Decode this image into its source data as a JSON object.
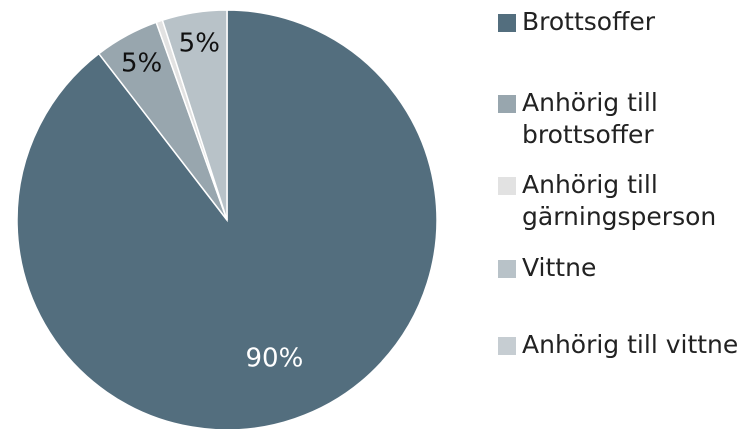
{
  "chart_data": {
    "type": "pie",
    "categories": [
      "Brottsoffer",
      "Anhörig till brottsoffer",
      "Anhörig till gärningsperson",
      "Vittne",
      "Anhörig till vittne"
    ],
    "values": [
      90,
      5,
      0.5,
      5,
      0
    ],
    "value_labels": [
      "90%",
      "5%",
      null,
      "5%",
      null
    ],
    "colors": [
      "#536e7e",
      "#98a6ae",
      "#e2e2e2",
      "#b8c2c8",
      "#c6cdd2"
    ],
    "legend": "right"
  }
}
